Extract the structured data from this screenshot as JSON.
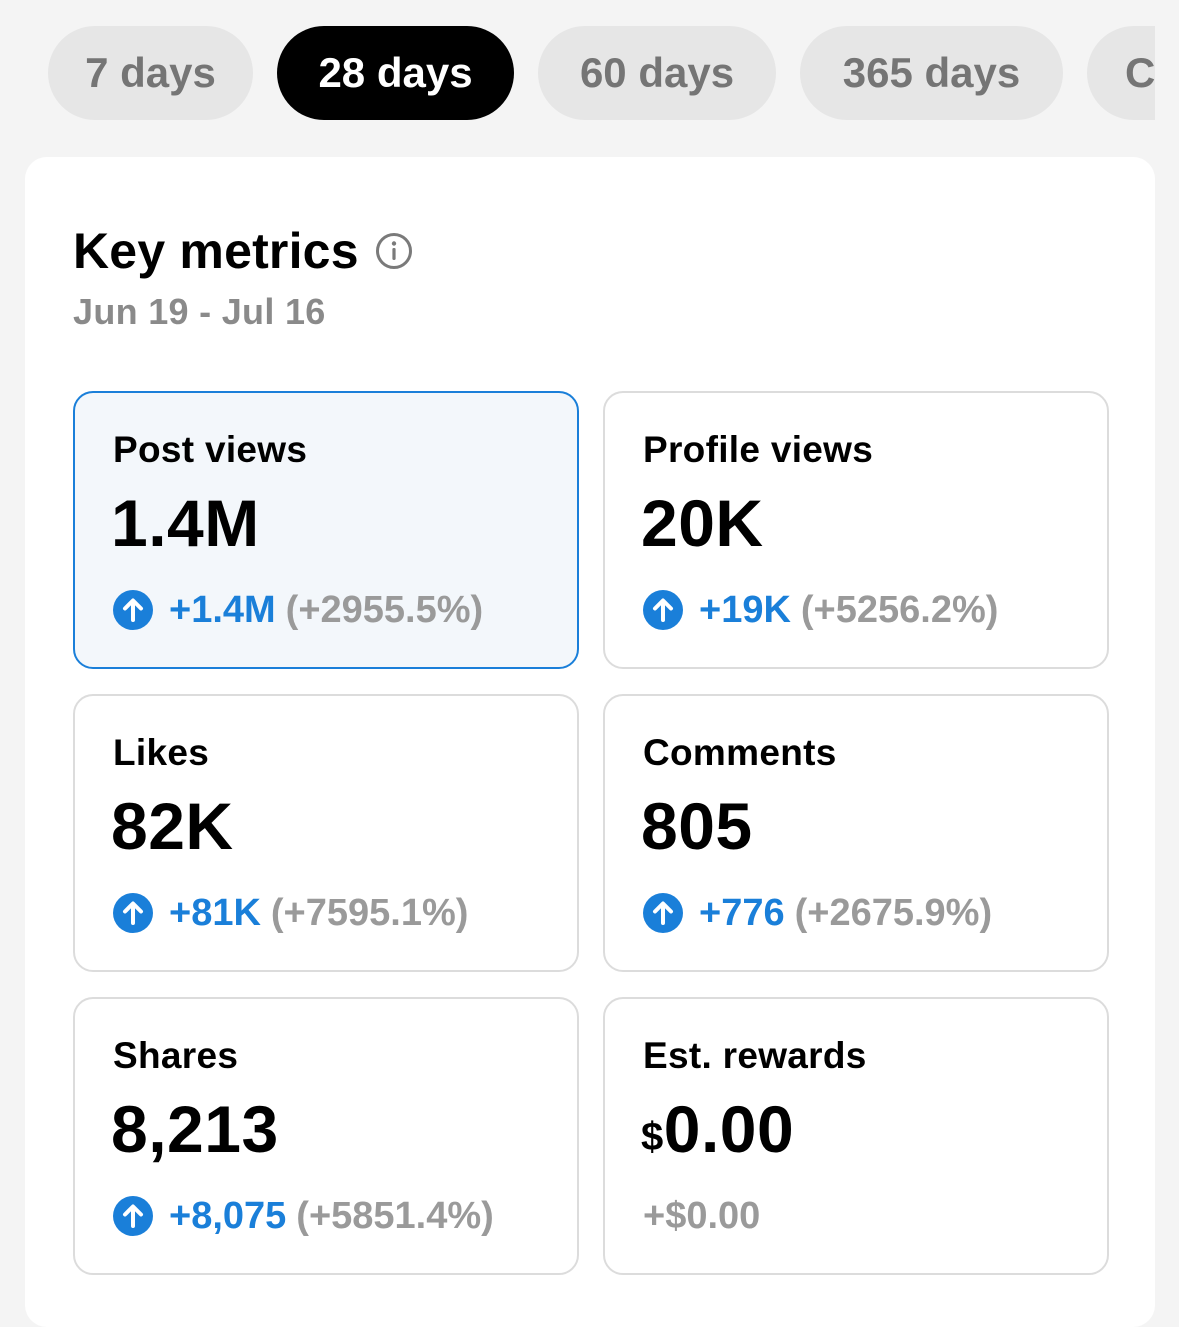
{
  "range_tabs": [
    {
      "label": "7 days",
      "active": false
    },
    {
      "label": "28 days",
      "active": true
    },
    {
      "label": "60 days",
      "active": false
    },
    {
      "label": "365 days",
      "active": false
    },
    {
      "label": "C",
      "active": false
    }
  ],
  "key_metrics": {
    "title": "Key metrics",
    "date_range": "Jun 19 - Jul 16",
    "metrics": [
      {
        "label": "Post views",
        "value": "1.4M",
        "delta": "+1.4M",
        "percent": "(+2955.5%)"
      },
      {
        "label": "Profile views",
        "value": "20K",
        "delta": "+19K",
        "percent": "(+5256.2%)"
      },
      {
        "label": "Likes",
        "value": "82K",
        "delta": "+81K",
        "percent": "(+7595.1%)"
      },
      {
        "label": "Comments",
        "value": "805",
        "delta": "+776",
        "percent": "(+2675.9%)"
      },
      {
        "label": "Shares",
        "value": "8,213",
        "delta": "+8,075",
        "percent": "(+5851.4%)"
      },
      {
        "label": "Est. rewards",
        "currency": "$",
        "value": "0.00",
        "change": "+$0.00"
      }
    ]
  },
  "colors": {
    "accent": "#1a7fd9",
    "active_tab": "#000000",
    "inactive_tab": "#e6e6e6",
    "muted_text": "#9a9a9a"
  },
  "icons": {
    "info": "info-circle-icon",
    "increase": "arrow-up-circle-icon"
  }
}
